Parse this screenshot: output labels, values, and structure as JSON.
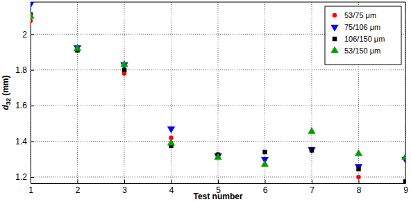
{
  "chart_data": {
    "type": "scatter",
    "xlabel": "Test number",
    "ylabel": "d32 (mm)",
    "x": [
      1,
      2,
      3,
      4,
      5,
      6,
      7,
      8,
      9
    ],
    "series": [
      {
        "name": "53/75 μm",
        "color": "#ff0000",
        "marker": "circle",
        "values": [
          2.075,
          1.92,
          1.78,
          1.42,
          1.325,
          1.3,
          1.355,
          1.2,
          1.175
        ]
      },
      {
        "name": "75/106 μm",
        "color": "#0000ff",
        "marker": "triangle-down",
        "values": [
          2.17,
          1.925,
          1.83,
          1.47,
          1.32,
          1.3,
          1.355,
          1.26,
          1.3
        ]
      },
      {
        "name": "106/150 μm",
        "color": "#000000",
        "marker": "square",
        "values": [
          2.11,
          1.91,
          1.8,
          1.375,
          1.325,
          1.34,
          1.35,
          1.245,
          1.175
        ]
      },
      {
        "name": "53/150 μm",
        "color": "#00a000",
        "marker": "triangle-up",
        "values": [
          2.1,
          1.92,
          1.83,
          1.39,
          1.31,
          1.27,
          1.455,
          1.33,
          1.31
        ]
      }
    ],
    "xlim": [
      1,
      9
    ],
    "ylim": [
      1.165,
      2.18
    ],
    "xticks": [
      1,
      2,
      3,
      4,
      5,
      6,
      7,
      8,
      9
    ],
    "yticks": [
      1.2,
      1.4,
      1.6,
      1.8,
      2
    ],
    "grid": true,
    "legend": "upper right"
  }
}
